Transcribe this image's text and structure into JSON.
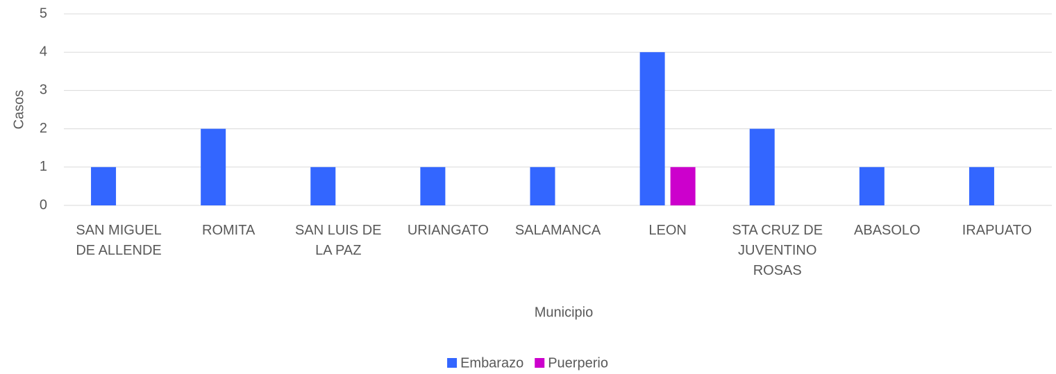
{
  "chart_data": {
    "type": "bar",
    "categories": [
      "SAN MIGUEL DE ALLENDE",
      "ROMITA",
      "SAN LUIS DE LA PAZ",
      "URIANGATO",
      "SALAMANCA",
      "LEON",
      "STA CRUZ DE JUVENTINO ROSAS",
      "ABASOLO",
      "IRAPUATO"
    ],
    "series": [
      {
        "name": "Embarazo",
        "color": "#3366ff",
        "values": [
          1,
          2,
          1,
          1,
          1,
          4,
          2,
          1,
          1
        ]
      },
      {
        "name": "Puerperio",
        "color": "#cc00cc",
        "values": [
          0,
          0,
          0,
          0,
          0,
          1,
          0,
          0,
          0
        ]
      }
    ],
    "xlabel": "Municipio",
    "ylabel": "Casos",
    "ylim": [
      0,
      5
    ],
    "yticks": [
      0,
      1,
      2,
      3,
      4,
      5
    ],
    "grid": true,
    "legend": "bottom"
  }
}
